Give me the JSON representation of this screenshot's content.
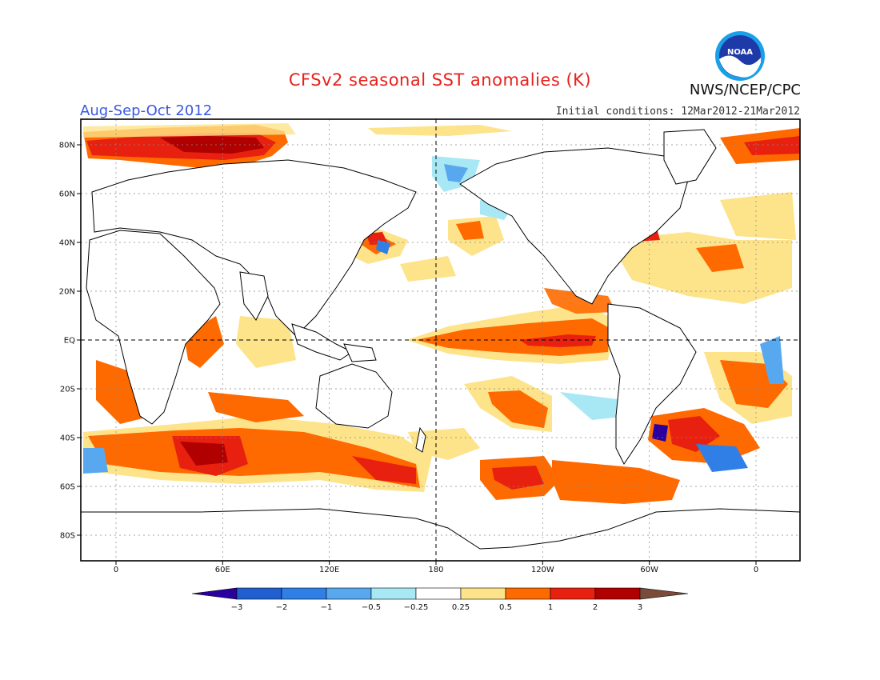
{
  "header": {
    "title": "CFSv2 seasonal SST anomalies (K)",
    "period": "Aug-Sep-Oct 2012",
    "initial_conditions": "Initial conditions: 12Mar2012-21Mar2012",
    "agency": "NWS/NCEP/CPC",
    "logo_text": "NOAA"
  },
  "map": {
    "lat_labels": [
      "80N",
      "60N",
      "40N",
      "20N",
      "EQ",
      "20S",
      "40S",
      "60S",
      "80S"
    ],
    "lat_values": [
      80,
      60,
      40,
      20,
      0,
      -20,
      -40,
      -60,
      -80
    ],
    "lon_labels": [
      "0",
      "60E",
      "120E",
      "180",
      "120W",
      "60W",
      "0"
    ],
    "lon_values": [
      0,
      60,
      120,
      180,
      240,
      300,
      360
    ]
  },
  "colorbar": {
    "labels": [
      "-3",
      "-2",
      "-1",
      "-0.5",
      "-0.25",
      "0.25",
      "0.5",
      "1",
      "2",
      "3"
    ],
    "colors": [
      "#2a00a0",
      "#1f5fcf",
      "#2f7fe6",
      "#58a8f0",
      "#a8e8f5",
      "#ffffff",
      "#fde38a",
      "#ff6a00",
      "#e8200f",
      "#b00000",
      "#7a4a3a"
    ],
    "color_roles": [
      "below -3 (arrow)",
      "-3 to -2",
      "-2 to -1",
      "-1 to -0.5",
      "-0.5 to -0.25",
      "-0.25 to 0.25",
      "0.25 to 0.5",
      "0.5 to 1",
      "1 to 2",
      "2 to 3",
      "above 3 (arrow)"
    ]
  }
}
